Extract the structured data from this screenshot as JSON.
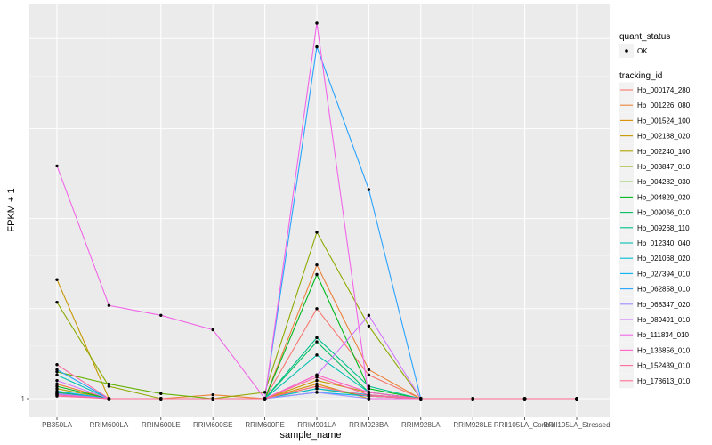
{
  "chart_data": {
    "type": "line",
    "title": "",
    "xlabel": "sample_name",
    "ylabel": "FPKM + 1",
    "categories": [
      "PB350LA",
      "RRIM600LA",
      "RRIM600LE",
      "RRIM600SE",
      "RRIM600PE",
      "RRIM901LA",
      "RRIM928BA",
      "RRIM928LA",
      "RRIM928LE",
      "RRII105LA_Control",
      "RRII105LA_Stressed"
    ],
    "y_tick_labels": [
      "1"
    ],
    "y_scale": "log",
    "grid": true,
    "background": "#ebebeb",
    "legend_position": "right",
    "point_legend": {
      "title": "quant_status",
      "entries": [
        "OK"
      ]
    },
    "legend_title": "tracking_id",
    "series": [
      {
        "name": "Hb_000174_280",
        "color": "#F8766D",
        "values": [
          1.12,
          1.0,
          1.0,
          1.0,
          1.0,
          2.0,
          1.2,
          1.0,
          1.0,
          1.0,
          1.0
        ]
      },
      {
        "name": "Hb_001226_080",
        "color": "#EC8239",
        "values": [
          1.12,
          1.0,
          1.0,
          1.03,
          1.0,
          2.8,
          1.25,
          1.0,
          1.0,
          1.0,
          1.0
        ]
      },
      {
        "name": "Hb_001524_100",
        "color": "#DB8E00",
        "values": [
          1.05,
          1.0,
          1.0,
          1.0,
          1.0,
          1.12,
          1.0,
          1.0,
          1.0,
          1.0,
          1.0
        ]
      },
      {
        "name": "Hb_002188_020",
        "color": "#C79800",
        "values": [
          2.5,
          1.0,
          1.0,
          1.0,
          1.0,
          1.15,
          1.05,
          1.0,
          1.0,
          1.0,
          1.0
        ]
      },
      {
        "name": "Hb_002240_100",
        "color": "#AEA200",
        "values": [
          1.08,
          1.0,
          1.0,
          1.0,
          1.0,
          1.1,
          1.02,
          1.0,
          1.0,
          1.0,
          1.0
        ]
      },
      {
        "name": "Hb_003847_010",
        "color": "#8FAA00",
        "values": [
          2.1,
          1.1,
          1.0,
          1.0,
          1.05,
          3.6,
          1.75,
          1.0,
          1.0,
          1.0,
          1.0
        ]
      },
      {
        "name": "Hb_004282_030",
        "color": "#64B200",
        "values": [
          1.23,
          1.12,
          1.04,
          1.0,
          1.0,
          1.08,
          1.02,
          1.0,
          1.0,
          1.0,
          1.0
        ]
      },
      {
        "name": "Hb_004829_020",
        "color": "#00B81B",
        "values": [
          1.1,
          1.0,
          1.0,
          1.0,
          1.0,
          2.6,
          1.08,
          1.0,
          1.0,
          1.0,
          1.0
        ]
      },
      {
        "name": "Hb_009066_010",
        "color": "#00BD5C",
        "values": [
          1.05,
          1.0,
          1.0,
          1.0,
          1.0,
          1.55,
          1.05,
          1.0,
          1.0,
          1.0,
          1.0
        ]
      },
      {
        "name": "Hb_009268_110",
        "color": "#00C08B",
        "values": [
          1.03,
          1.0,
          1.0,
          1.0,
          1.0,
          1.6,
          1.1,
          1.0,
          1.0,
          1.0,
          1.0
        ]
      },
      {
        "name": "Hb_012340_040",
        "color": "#00C1B2",
        "values": [
          1.2,
          1.0,
          1.0,
          1.0,
          1.0,
          1.4,
          1.05,
          1.0,
          1.0,
          1.0,
          1.0
        ]
      },
      {
        "name": "Hb_021068_020",
        "color": "#00BCD6",
        "values": [
          1.04,
          1.0,
          1.0,
          1.0,
          1.0,
          1.08,
          1.03,
          1.0,
          1.0,
          1.0,
          1.0
        ]
      },
      {
        "name": "Hb_027394_010",
        "color": "#00B3F2",
        "values": [
          1.06,
          1.0,
          1.0,
          1.0,
          1.0,
          1.05,
          1.02,
          1.0,
          1.0,
          1.0,
          1.0
        ]
      },
      {
        "name": "Hb_062858_010",
        "color": "#29A3FF",
        "values": [
          1.25,
          1.0,
          1.0,
          1.0,
          1.0,
          15.0,
          5.0,
          1.0,
          1.0,
          1.0,
          1.0
        ]
      },
      {
        "name": "Hb_068347_020",
        "color": "#9C8DFF",
        "values": [
          1.04,
          1.0,
          1.0,
          1.0,
          1.0,
          1.05,
          1.0,
          1.0,
          1.0,
          1.0,
          1.0
        ]
      },
      {
        "name": "Hb_089491_010",
        "color": "#D277FF",
        "values": [
          1.15,
          1.0,
          1.0,
          1.0,
          1.0,
          1.2,
          1.9,
          1.0,
          1.0,
          1.0,
          1.0
        ]
      },
      {
        "name": "Hb_111834_010",
        "color": "#F166E8",
        "values": [
          6.0,
          2.05,
          1.9,
          1.7,
          1.0,
          18.0,
          1.0,
          1.0,
          1.0,
          1.0,
          1.0
        ]
      },
      {
        "name": "Hb_136856_010",
        "color": "#FF61C7",
        "values": [
          1.03,
          1.0,
          1.0,
          1.0,
          1.0,
          1.2,
          1.05,
          1.0,
          1.0,
          1.0,
          1.0
        ]
      },
      {
        "name": "Hb_152439_010",
        "color": "#FF689E",
        "values": [
          1.3,
          1.0,
          1.0,
          1.0,
          1.0,
          1.18,
          1.03,
          1.0,
          1.0,
          1.0,
          1.0
        ]
      },
      {
        "name": "Hb_178613_010",
        "color": "#FF6C91",
        "values": [
          1.02,
          1.0,
          1.0,
          1.0,
          1.0,
          1.1,
          1.02,
          1.0,
          1.0,
          1.0,
          1.0
        ]
      }
    ]
  }
}
